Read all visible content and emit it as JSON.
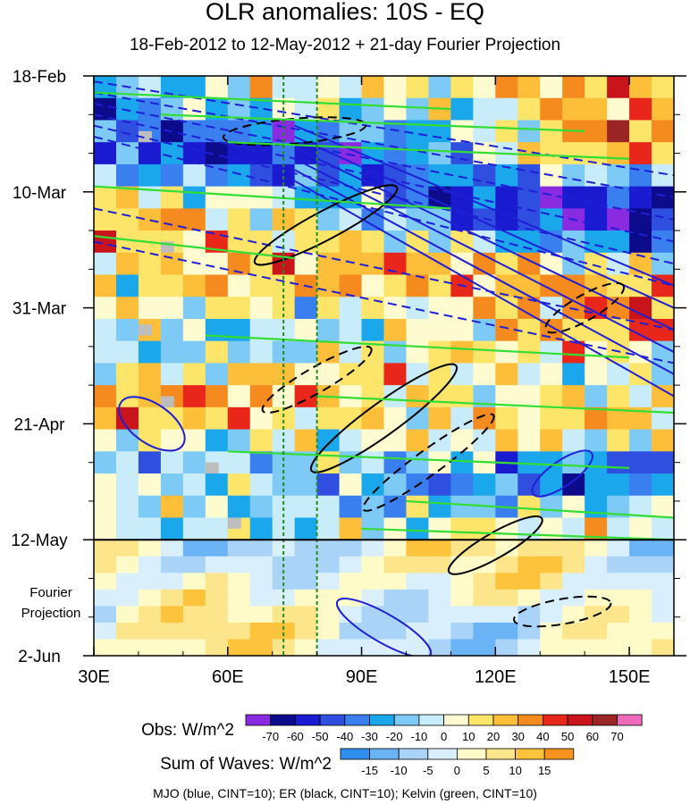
{
  "chart_data": {
    "type": "heatmap",
    "title": "OLR anomalies: 10S - EQ",
    "subtitle": "18-Feb-2012 to 12-May-2012 + 21-day Fourier Projection",
    "xlabel": "",
    "ylabel": "",
    "x_range_deg_E": [
      30,
      160
    ],
    "x_ticks": [
      {
        "value": 30,
        "label": "30E"
      },
      {
        "value": 60,
        "label": "60E"
      },
      {
        "value": 90,
        "label": "90E"
      },
      {
        "value": 120,
        "label": "120E"
      },
      {
        "value": 150,
        "label": "150E"
      }
    ],
    "time_range_days_since_18_Feb": [
      0,
      105
    ],
    "y_ticks": [
      {
        "value": 0,
        "label": "18-Feb"
      },
      {
        "value": 21,
        "label": "10-Mar"
      },
      {
        "value": 42,
        "label": "31-Mar"
      },
      {
        "value": 63,
        "label": "21-Apr"
      },
      {
        "value": 84,
        "label": "12-May"
      },
      {
        "value": 105,
        "label": "2-Jun"
      }
    ],
    "projection_start_day": 84,
    "projection_label": [
      "Fourier",
      "Projection"
    ],
    "reference_longitudes": [
      72.5,
      80
    ],
    "obs_colorbar": {
      "label": "Obs: W/m^2",
      "levels": [
        -70,
        -60,
        -50,
        -40,
        -30,
        -20,
        -10,
        0,
        10,
        20,
        30,
        40,
        50,
        60,
        70
      ],
      "colors": [
        "#8a2be2",
        "#0b0b8c",
        "#1a1ad0",
        "#2f4fe0",
        "#3a7ff0",
        "#1aa7ec",
        "#7ccaf5",
        "#c8ecfa",
        "#fdfbcf",
        "#fde56a",
        "#fdbe3a",
        "#f58a1e",
        "#e8261a",
        "#c8141a",
        "#9b2424",
        "#ec6ab8"
      ]
    },
    "waves_colorbar": {
      "label": "Sum of Waves: W/m^2",
      "levels": [
        -15,
        -10,
        -5,
        0,
        5,
        10,
        15
      ],
      "colors": [
        "#2f8ff0",
        "#6ab4f5",
        "#a9d4f8",
        "#d9f0fc",
        "#fffbc8",
        "#fde58c",
        "#fdc33c",
        "#f7921e"
      ]
    },
    "contour_series": [
      {
        "name": "MJO",
        "color": "blue",
        "cint": 10
      },
      {
        "name": "ER",
        "color": "black",
        "cint": 10
      },
      {
        "name": "Kelvin",
        "color": "green",
        "cint": 10
      }
    ],
    "footnote": "MJO (blue, CINT=10); ER (black, CINT=10); Kelvin (green, CINT=10)"
  },
  "colors": {
    "mjo": "#1f1fd6",
    "er": "#000000",
    "kelvin": "#33dd33",
    "reference_line": "#228b22",
    "missing": "#bdbdbd"
  }
}
